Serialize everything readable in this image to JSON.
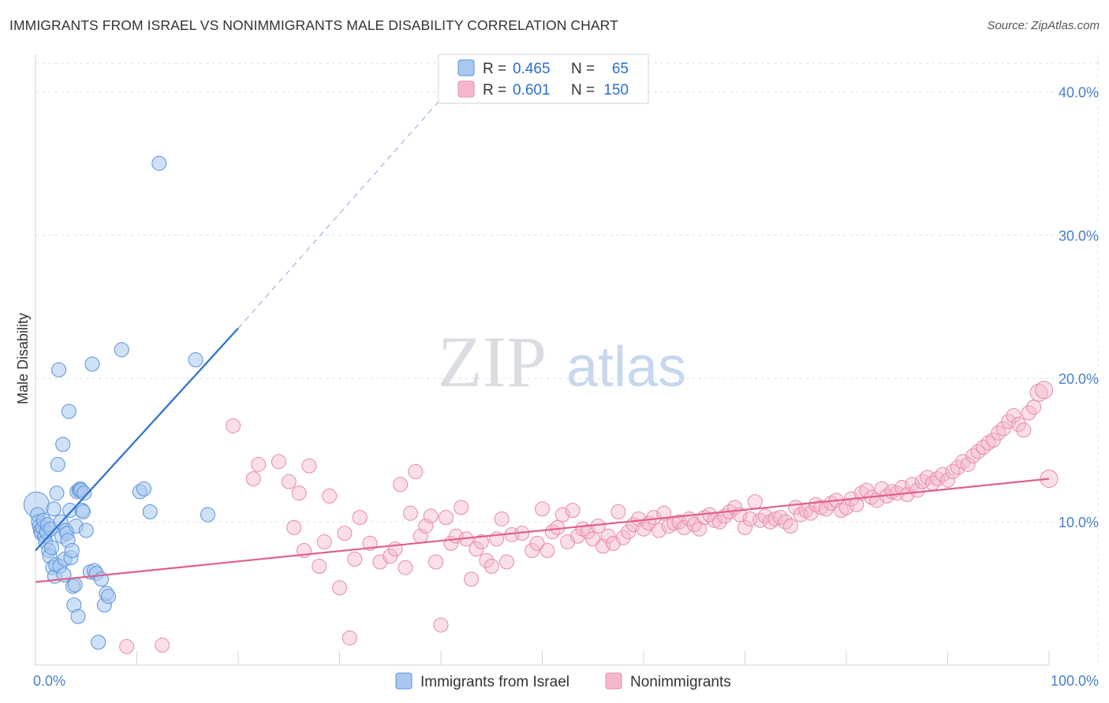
{
  "title": "IMMIGRANTS FROM ISRAEL VS NONIMMIGRANTS MALE DISABILITY CORRELATION CHART",
  "source": "Source: ZipAtlas.com",
  "watermark": {
    "zip": "ZIP",
    "atlas": "atlas"
  },
  "colors": {
    "blue_fill": "#a8c8f0",
    "blue_stroke": "#5b93d8",
    "blue_line": "#2a6fd1",
    "pink_fill": "#f5b8cb",
    "pink_stroke": "#e88aa8",
    "pink_line": "#e0608e",
    "tick_text": "#4a7fc9",
    "grid": "#dde3ea"
  },
  "legend": {
    "rows": [
      {
        "r_label": "R = ",
        "r_value": "0.465",
        "n_label": "N = ",
        "n_value": "65",
        "series": "blue"
      },
      {
        "r_label": "R = ",
        "r_value": "0.601",
        "n_label": "N = ",
        "n_value": "150",
        "series": "pink"
      }
    ]
  },
  "chart_data": {
    "type": "scatter",
    "title": "IMMIGRANTS FROM ISRAEL VS NONIMMIGRANTS MALE DISABILITY CORRELATION CHART",
    "xlabel": "",
    "ylabel": "Male Disability",
    "xlim": [
      0,
      100
    ],
    "ylim": [
      0,
      42
    ],
    "x_tick_labels": [
      "0.0%",
      "100.0%"
    ],
    "y_ticks": [
      10,
      20,
      30,
      40
    ],
    "y_tick_labels": [
      "10.0%",
      "20.0%",
      "30.0%",
      "40.0%"
    ],
    "grid": true,
    "legend_position": "bottom",
    "series": [
      {
        "name": "Immigrants from Israel",
        "color": "blue",
        "r": 0.465,
        "n": 65,
        "trend": {
          "x0": 0,
          "y0": 8.0,
          "x1": 20,
          "y1": 23.5,
          "dashed_to_x": 40,
          "dashed_to_y": 39.5
        },
        "points": [
          [
            0.1,
            11.2
          ],
          [
            0.2,
            10.5
          ],
          [
            0.3,
            10.0
          ],
          [
            0.4,
            9.7
          ],
          [
            0.5,
            9.4
          ],
          [
            0.6,
            9.2
          ],
          [
            0.7,
            9.6
          ],
          [
            0.8,
            10.1
          ],
          [
            0.9,
            9.0
          ],
          [
            1.0,
            8.6
          ],
          [
            1.1,
            9.3
          ],
          [
            1.2,
            9.8
          ],
          [
            1.3,
            8.0
          ],
          [
            1.4,
            7.6
          ],
          [
            1.5,
            9.5
          ],
          [
            1.6,
            8.2
          ],
          [
            1.7,
            6.8
          ],
          [
            1.8,
            10.9
          ],
          [
            1.9,
            6.2
          ],
          [
            2.0,
            7.0
          ],
          [
            2.1,
            12.0
          ],
          [
            2.2,
            14.0
          ],
          [
            2.3,
            20.6
          ],
          [
            2.4,
            6.9
          ],
          [
            2.5,
            10.0
          ],
          [
            2.6,
            9.0
          ],
          [
            2.7,
            15.4
          ],
          [
            2.8,
            6.3
          ],
          [
            2.9,
            7.4
          ],
          [
            3.0,
            9.4
          ],
          [
            3.1,
            9.2
          ],
          [
            3.2,
            8.7
          ],
          [
            3.3,
            17.7
          ],
          [
            3.4,
            10.8
          ],
          [
            3.5,
            7.5
          ],
          [
            3.6,
            8.0
          ],
          [
            3.7,
            5.5
          ],
          [
            3.8,
            4.2
          ],
          [
            3.9,
            5.6
          ],
          [
            4.0,
            9.7
          ],
          [
            4.1,
            12.1
          ],
          [
            4.2,
            3.4
          ],
          [
            4.3,
            12.2
          ],
          [
            4.4,
            12.3
          ],
          [
            4.5,
            12.2
          ],
          [
            4.6,
            10.8
          ],
          [
            4.7,
            10.7
          ],
          [
            4.8,
            12.0
          ],
          [
            5.0,
            9.4
          ],
          [
            5.4,
            6.5
          ],
          [
            5.6,
            21.0
          ],
          [
            5.8,
            6.6
          ],
          [
            6.0,
            6.4
          ],
          [
            6.2,
            1.6
          ],
          [
            6.5,
            6.0
          ],
          [
            6.8,
            4.2
          ],
          [
            7.0,
            5.0
          ],
          [
            7.2,
            4.8
          ],
          [
            8.5,
            22.0
          ],
          [
            10.3,
            12.1
          ],
          [
            10.7,
            12.3
          ],
          [
            11.3,
            10.7
          ],
          [
            12.2,
            35.0
          ],
          [
            15.8,
            21.3
          ],
          [
            17.0,
            10.5
          ]
        ]
      },
      {
        "name": "Nonimmigrants",
        "color": "pink",
        "r": 0.601,
        "n": 150,
        "trend": {
          "x0": 0,
          "y0": 5.8,
          "x1": 100,
          "y1": 13.0
        },
        "points": [
          [
            9.0,
            1.3
          ],
          [
            12.5,
            1.4
          ],
          [
            19.5,
            16.7
          ],
          [
            21.5,
            13.0
          ],
          [
            22.0,
            14.0
          ],
          [
            24.0,
            14.2
          ],
          [
            25.0,
            12.8
          ],
          [
            25.5,
            9.6
          ],
          [
            26.0,
            12.0
          ],
          [
            26.5,
            8.0
          ],
          [
            27.0,
            13.9
          ],
          [
            28.0,
            6.9
          ],
          [
            28.5,
            8.6
          ],
          [
            29.0,
            11.8
          ],
          [
            30.0,
            5.4
          ],
          [
            30.5,
            9.2
          ],
          [
            31.0,
            1.9
          ],
          [
            31.5,
            7.4
          ],
          [
            32.0,
            10.3
          ],
          [
            33.0,
            8.5
          ],
          [
            34.0,
            7.2
          ],
          [
            35.0,
            7.6
          ],
          [
            35.5,
            8.1
          ],
          [
            36.0,
            12.6
          ],
          [
            36.5,
            6.8
          ],
          [
            37.0,
            10.6
          ],
          [
            37.5,
            13.5
          ],
          [
            38.0,
            9.0
          ],
          [
            38.5,
            9.7
          ],
          [
            39.0,
            10.4
          ],
          [
            39.5,
            7.2
          ],
          [
            40.0,
            2.8
          ],
          [
            40.5,
            10.3
          ],
          [
            41.0,
            8.5
          ],
          [
            41.5,
            9.0
          ],
          [
            42.0,
            11.0
          ],
          [
            42.5,
            8.8
          ],
          [
            43.0,
            6.0
          ],
          [
            43.5,
            8.1
          ],
          [
            44.0,
            8.6
          ],
          [
            44.5,
            7.3
          ],
          [
            45.0,
            6.9
          ],
          [
            45.5,
            8.8
          ],
          [
            46.0,
            10.2
          ],
          [
            46.5,
            7.2
          ],
          [
            47.0,
            9.1
          ],
          [
            48.0,
            9.2
          ],
          [
            49.0,
            8.0
          ],
          [
            49.5,
            8.5
          ],
          [
            50.0,
            10.9
          ],
          [
            50.5,
            8.0
          ],
          [
            51.0,
            9.3
          ],
          [
            51.5,
            9.6
          ],
          [
            52.0,
            10.5
          ],
          [
            52.5,
            8.6
          ],
          [
            53.0,
            10.8
          ],
          [
            53.5,
            9.0
          ],
          [
            54.0,
            9.5
          ],
          [
            54.5,
            9.3
          ],
          [
            55.0,
            8.8
          ],
          [
            55.5,
            9.7
          ],
          [
            56.0,
            8.3
          ],
          [
            56.5,
            9.0
          ],
          [
            57.0,
            8.5
          ],
          [
            57.5,
            10.7
          ],
          [
            58.0,
            8.9
          ],
          [
            58.5,
            9.3
          ],
          [
            59.0,
            9.8
          ],
          [
            59.5,
            10.2
          ],
          [
            60.0,
            9.5
          ],
          [
            60.5,
            9.9
          ],
          [
            61.0,
            10.3
          ],
          [
            61.5,
            9.4
          ],
          [
            62.0,
            10.6
          ],
          [
            62.5,
            9.7
          ],
          [
            63.0,
            9.9
          ],
          [
            63.5,
            10.0
          ],
          [
            64.0,
            9.6
          ],
          [
            64.5,
            10.2
          ],
          [
            65.0,
            9.8
          ],
          [
            65.5,
            9.5
          ],
          [
            66.0,
            10.3
          ],
          [
            66.5,
            10.5
          ],
          [
            67.0,
            10.1
          ],
          [
            67.5,
            10.0
          ],
          [
            68.0,
            10.4
          ],
          [
            68.5,
            10.7
          ],
          [
            69.0,
            11.0
          ],
          [
            69.5,
            10.5
          ],
          [
            70.0,
            9.6
          ],
          [
            70.5,
            10.2
          ],
          [
            71.0,
            11.4
          ],
          [
            71.5,
            10.1
          ],
          [
            72.0,
            10.4
          ],
          [
            72.5,
            10.0
          ],
          [
            73.0,
            10.2
          ],
          [
            73.5,
            10.3
          ],
          [
            74.0,
            10.0
          ],
          [
            74.5,
            9.7
          ],
          [
            75.0,
            11.0
          ],
          [
            75.5,
            10.5
          ],
          [
            76.0,
            10.8
          ],
          [
            76.5,
            10.6
          ],
          [
            77.0,
            11.2
          ],
          [
            77.5,
            11.0
          ],
          [
            78.0,
            10.9
          ],
          [
            78.5,
            11.3
          ],
          [
            79.0,
            11.5
          ],
          [
            79.5,
            10.8
          ],
          [
            80.0,
            11.0
          ],
          [
            80.5,
            11.6
          ],
          [
            81.0,
            11.2
          ],
          [
            81.5,
            12.0
          ],
          [
            82.0,
            12.2
          ],
          [
            82.5,
            11.7
          ],
          [
            83.0,
            11.5
          ],
          [
            83.5,
            12.3
          ],
          [
            84.0,
            11.8
          ],
          [
            84.5,
            12.1
          ],
          [
            85.0,
            12.0
          ],
          [
            85.5,
            12.4
          ],
          [
            86.0,
            11.9
          ],
          [
            86.5,
            12.6
          ],
          [
            87.0,
            12.2
          ],
          [
            87.5,
            12.8
          ],
          [
            88.0,
            13.1
          ],
          [
            88.5,
            12.7
          ],
          [
            89.0,
            13.0
          ],
          [
            89.5,
            13.3
          ],
          [
            90.0,
            12.9
          ],
          [
            90.5,
            13.5
          ],
          [
            91.0,
            13.8
          ],
          [
            91.5,
            14.2
          ],
          [
            92.0,
            14.0
          ],
          [
            92.5,
            14.6
          ],
          [
            93.0,
            14.9
          ],
          [
            93.5,
            15.2
          ],
          [
            94.0,
            15.5
          ],
          [
            94.5,
            15.7
          ],
          [
            95.0,
            16.2
          ],
          [
            95.5,
            16.5
          ],
          [
            96.0,
            17.0
          ],
          [
            96.5,
            17.4
          ],
          [
            97.0,
            16.8
          ],
          [
            97.5,
            16.4
          ],
          [
            98.0,
            17.6
          ],
          [
            98.5,
            18.0
          ],
          [
            99.0,
            19.0
          ],
          [
            99.5,
            19.2
          ],
          [
            100.0,
            13.0
          ]
        ]
      }
    ]
  }
}
